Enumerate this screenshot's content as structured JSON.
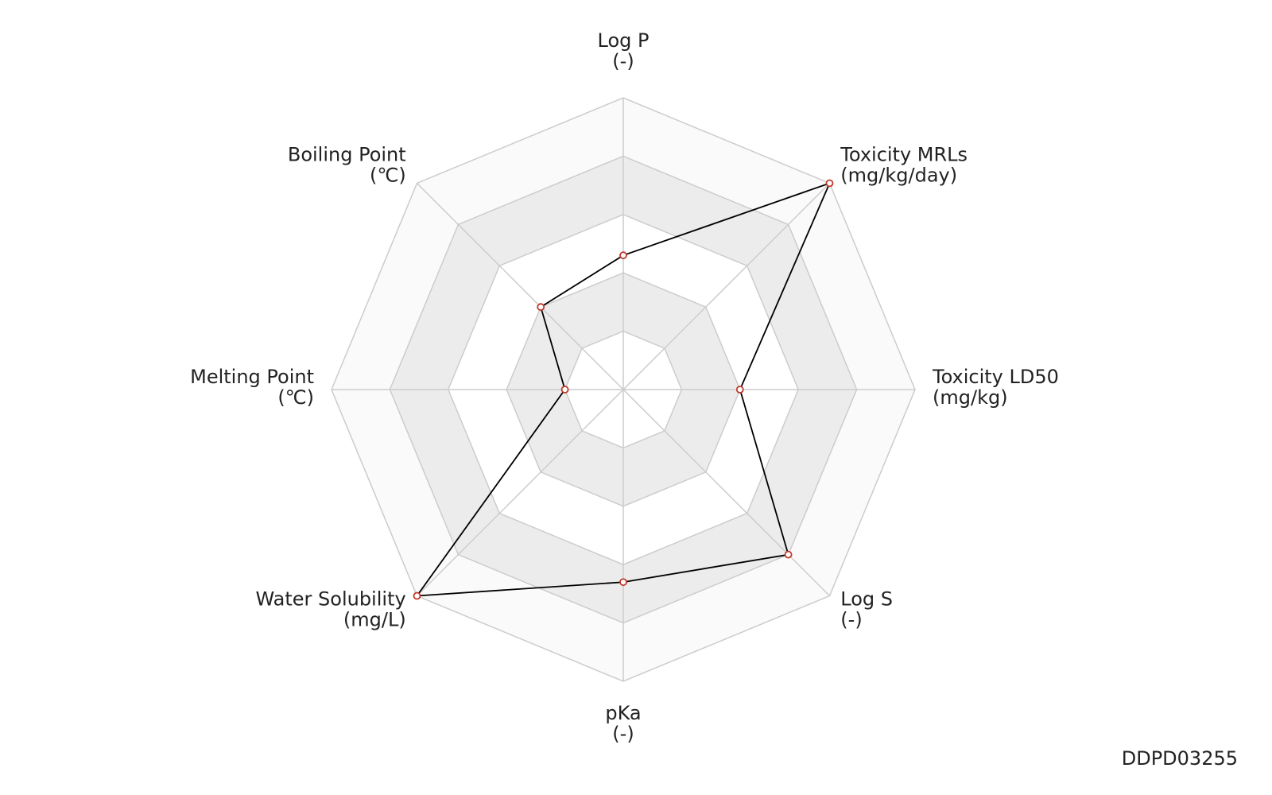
{
  "chart_data": {
    "type": "radar",
    "categories": [
      "Log P",
      "Toxicity MRLs",
      "Toxicity LD50",
      "Log S",
      "pKa",
      "Water Solubility",
      "Melting Point",
      "Boiling Point"
    ],
    "units": [
      "(-)",
      "(mg/kg/day)",
      "(mg/kg)",
      "(-)",
      "(-)",
      "(mg/L)",
      "(℃)",
      "(℃)"
    ],
    "values": [
      2.3,
      5,
      2,
      4,
      3.3,
      5,
      1,
      2
    ],
    "color": "#000000",
    "marker_color": "#c0392b",
    "ylim": [
      0,
      5
    ],
    "yticks": [
      1,
      2,
      3,
      4,
      5
    ],
    "grid": true,
    "footnote": "DDPD03255"
  }
}
